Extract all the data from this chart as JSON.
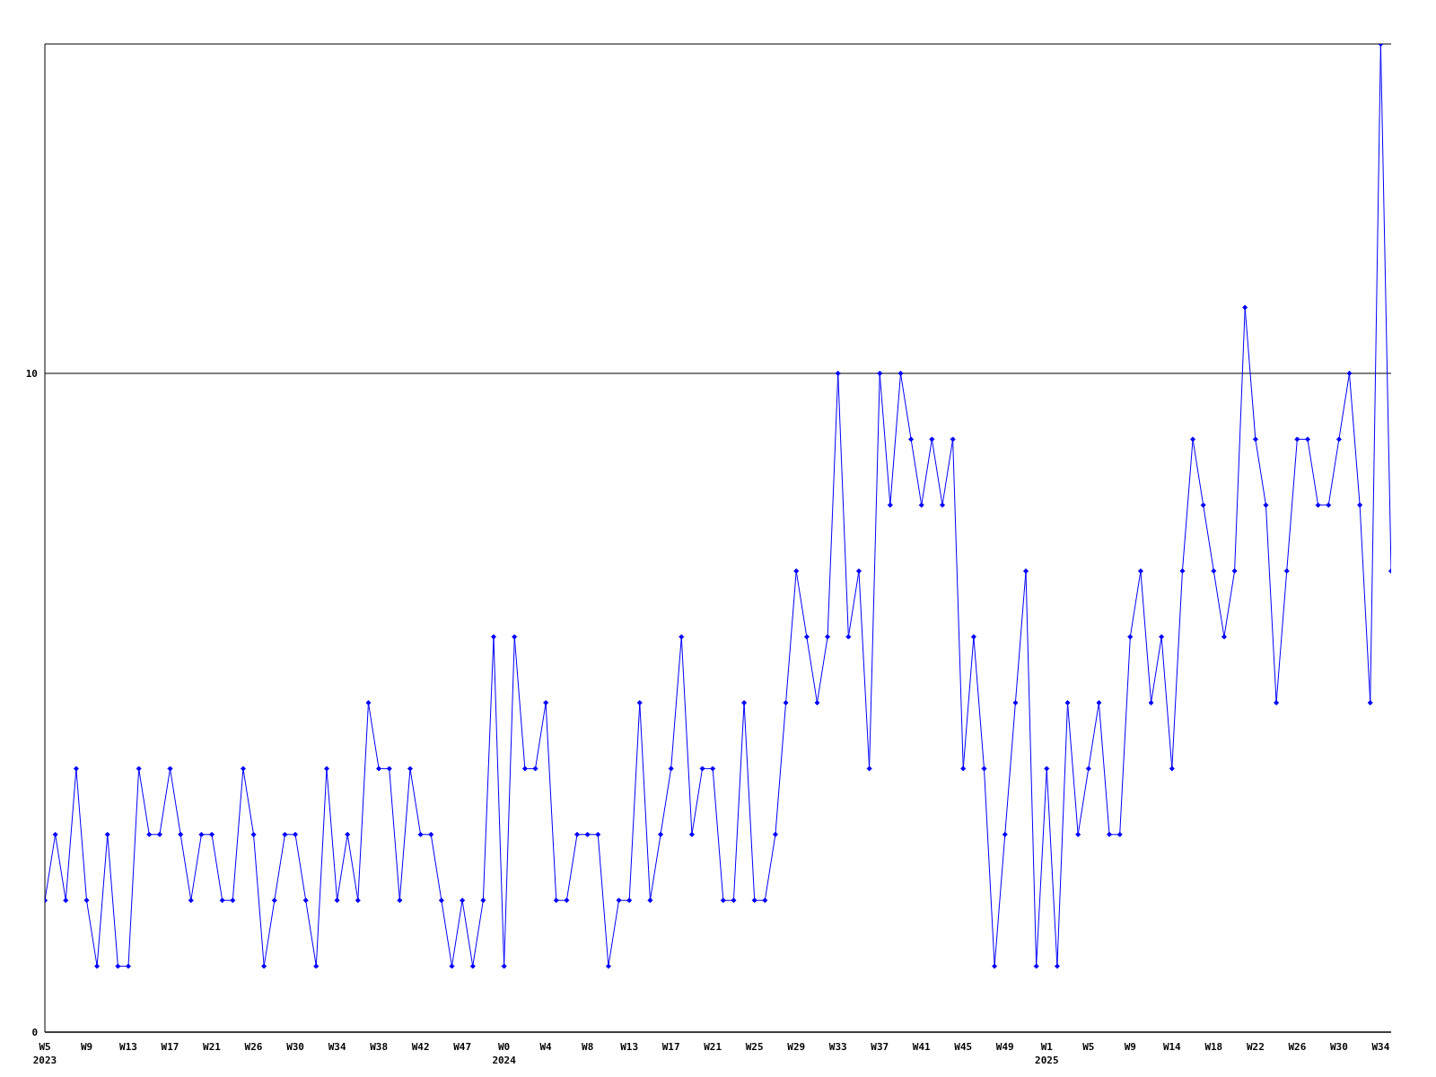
{
  "chart_data": {
    "type": "line",
    "categories": [
      "W5\n2023",
      null,
      null,
      null,
      "W9",
      null,
      null,
      null,
      "W13",
      null,
      null,
      null,
      "W17",
      null,
      null,
      null,
      "W21",
      null,
      null,
      null,
      "W26",
      null,
      null,
      null,
      "W30",
      null,
      null,
      null,
      "W34",
      null,
      null,
      null,
      "W38",
      null,
      null,
      null,
      "W42",
      null,
      null,
      null,
      "W47",
      null,
      null,
      null,
      "W0\n2024",
      null,
      null,
      null,
      "W4",
      null,
      null,
      null,
      "W8",
      null,
      null,
      null,
      "W13",
      null,
      null,
      null,
      "W17",
      null,
      null,
      null,
      "W21",
      null,
      null,
      null,
      "W25",
      null,
      null,
      null,
      "W29",
      null,
      null,
      null,
      "W33",
      null,
      null,
      null,
      "W37",
      null,
      null,
      null,
      "W41",
      null,
      null,
      null,
      "W45",
      null,
      null,
      null,
      "W49",
      null,
      null,
      null,
      "W1\n2025",
      null,
      null,
      null,
      "W5",
      null,
      null,
      null,
      "W9",
      null,
      null,
      null,
      "W14",
      null,
      null,
      null,
      "W18",
      null,
      null,
      null,
      "W22",
      null,
      null,
      null,
      "W26",
      null,
      null,
      null,
      "W30",
      null,
      null,
      null,
      "W34",
      null
    ],
    "series": [
      {
        "color": "#0000ff",
        "values": [
          2,
          3,
          2,
          4,
          2,
          1,
          3,
          1,
          1,
          4,
          3,
          3,
          4,
          3,
          2,
          3,
          3,
          2,
          2,
          4,
          3,
          1,
          2,
          3,
          3,
          2,
          1,
          4,
          2,
          3,
          2,
          5,
          4,
          4,
          2,
          4,
          3,
          3,
          2,
          1,
          2,
          1,
          2,
          6,
          1,
          6,
          4,
          4,
          5,
          2,
          2,
          3,
          3,
          3,
          1,
          2,
          2,
          5,
          2,
          3,
          4,
          6,
          3,
          4,
          4,
          2,
          2,
          5,
          2,
          2,
          3,
          5,
          7,
          6,
          5,
          6,
          10,
          6,
          7,
          4,
          10,
          8,
          10,
          9,
          8,
          9,
          8,
          9,
          4,
          6,
          4,
          1,
          3,
          5,
          7,
          1,
          4,
          1,
          5,
          3,
          4,
          5,
          3,
          3,
          6,
          7,
          5,
          6,
          4,
          7,
          9,
          8,
          7,
          6,
          7,
          11,
          9,
          8,
          5,
          7,
          9,
          9,
          8,
          8,
          9,
          10,
          8,
          5,
          15,
          7
        ]
      }
    ],
    "ylim": [
      0,
      15
    ],
    "yticks": [
      0,
      10
    ],
    "grid": "y",
    "marker": "diamond",
    "line_style": "solid"
  }
}
